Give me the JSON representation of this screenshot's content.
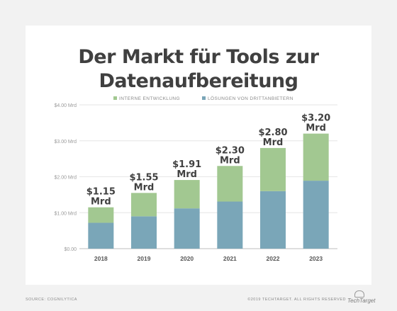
{
  "chart_data": {
    "type": "bar",
    "stacked": true,
    "title": "Der Markt für Tools zur Datenaufbereitung",
    "categories": [
      "2018",
      "2019",
      "2020",
      "2021",
      "2022",
      "2023"
    ],
    "series": [
      {
        "name": "LÖSUNGEN VON DRITTANBIETERN",
        "color": "#7aa6b8",
        "values": [
          0.72,
          0.9,
          1.12,
          1.31,
          1.6,
          1.89
        ]
      },
      {
        "name": "INTERNE ENTWICKLUNG",
        "color": "#a2c891",
        "values": [
          0.43,
          0.65,
          0.79,
          0.99,
          1.2,
          1.31
        ]
      }
    ],
    "totals": [
      "$1.15",
      "$1.55",
      "$1.91",
      "$2.30",
      "$2.80",
      "$3.20"
    ],
    "total_unit": "Mrd",
    "yticks": [
      0,
      1,
      2,
      3,
      4
    ],
    "ytick_labels": [
      "$0.00",
      "$1.00 Mrd",
      "$2.00 Mrd",
      "$3.00 Mrd",
      "$4.00 Mrd"
    ],
    "ylim": [
      0,
      4
    ],
    "legend_position": "top",
    "grid": true
  },
  "footer": {
    "source": "SOURCE: COGNILYTICA",
    "copyright": "©2019 TECHTARGET. ALL RIGHTS RESERVED",
    "brand": "TechTarget"
  }
}
